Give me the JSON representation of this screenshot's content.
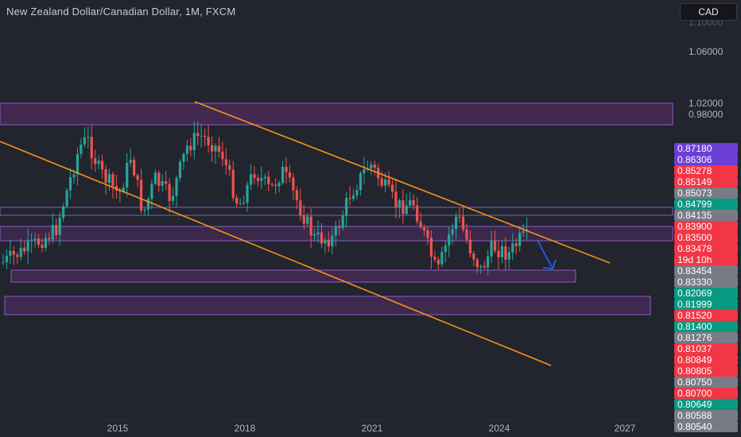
{
  "header": {
    "title": "New Zealand Dollar/Canadian Dollar, 1M, FXCM",
    "currency_button": "CAD"
  },
  "price_axis": {
    "labels": [
      "1.06000",
      "1.02000",
      "0.98000"
    ],
    "partial_top_label": "1.10000"
  },
  "time_axis": {
    "labels": [
      "2015",
      "2018",
      "2021",
      "2024",
      "2027"
    ]
  },
  "price_tags": [
    {
      "text": "0.87180",
      "color": "#6b3fd6"
    },
    {
      "text": "0.86306",
      "color": "#6b3fd6"
    },
    {
      "text": "0.85278",
      "color": "#f23645"
    },
    {
      "text": "0.85149",
      "color": "#f23645"
    },
    {
      "text": "0.85073",
      "color": "#787b86"
    },
    {
      "text": "0.84799",
      "color": "#089981"
    },
    {
      "text": "0.84135",
      "color": "#787b86"
    },
    {
      "text": "0.83900",
      "color": "#f23645"
    },
    {
      "text": "0.83500",
      "color": "#f23645"
    },
    {
      "text": "0.83478",
      "color": "#f23645"
    },
    {
      "text": "19d 10h",
      "color": "#f23645",
      "is_countdown": true
    },
    {
      "text": "0.83454",
      "color": "#787b86"
    },
    {
      "text": "0.83330",
      "color": "#787b86"
    },
    {
      "text": "0.82069",
      "color": "#089981"
    },
    {
      "text": "0.81999",
      "color": "#089981"
    },
    {
      "text": "0.81520",
      "color": "#f23645"
    },
    {
      "text": "0.81400",
      "color": "#089981"
    },
    {
      "text": "0.81276",
      "color": "#787b86"
    },
    {
      "text": "0.81037",
      "color": "#f23645"
    },
    {
      "text": "0.80849",
      "color": "#f23645"
    },
    {
      "text": "0.80805",
      "color": "#f23645"
    },
    {
      "text": "0.80750",
      "color": "#787b86"
    },
    {
      "text": "0.80700",
      "color": "#f23645"
    },
    {
      "text": "0.80649",
      "color": "#089981"
    },
    {
      "text": "0.80588",
      "color": "#787b86"
    },
    {
      "text": "0.80540",
      "color": "#787b86"
    }
  ],
  "colors": {
    "background": "#22252e",
    "up_candle": "#26a69a",
    "down_candle": "#ef5350",
    "zone_fill": "#5b2d6e",
    "zone_border": "#8e5cc9",
    "trendline": "#f7931a",
    "arrow": "#2962ff"
  }
}
